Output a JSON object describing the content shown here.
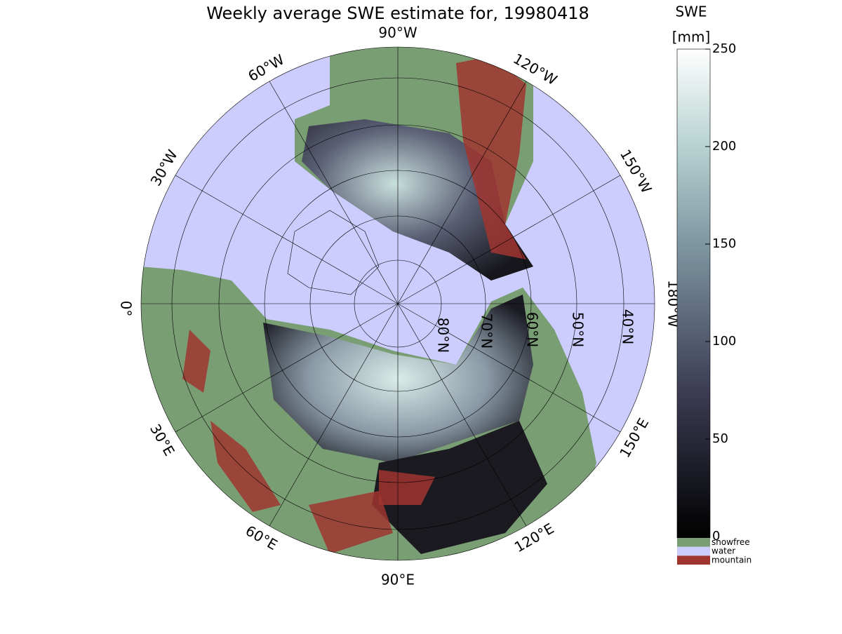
{
  "map": {
    "title": "Weekly average SWE estimate for, 19980418",
    "longitude_labels": [
      "90°W",
      "120°W",
      "150°W",
      "180°W",
      "150°E",
      "120°E",
      "90°E",
      "60°E",
      "30°E",
      "0°",
      "30°W",
      "60°W"
    ],
    "latitude_labels": [
      "80°N",
      "70°N",
      "60°N",
      "50°N",
      "40°N"
    ],
    "colorbar": {
      "title": "SWE",
      "unit": "[mm]",
      "lim": [
        0,
        250
      ],
      "ticks": [
        0,
        50,
        100,
        150,
        200,
        250
      ]
    },
    "legend": [
      {
        "label": "snowfree",
        "color": "#7a9e74"
      },
      {
        "label": "water",
        "color": "#ccccff"
      },
      {
        "label": "mountain",
        "color": "#a03530"
      }
    ]
  }
}
